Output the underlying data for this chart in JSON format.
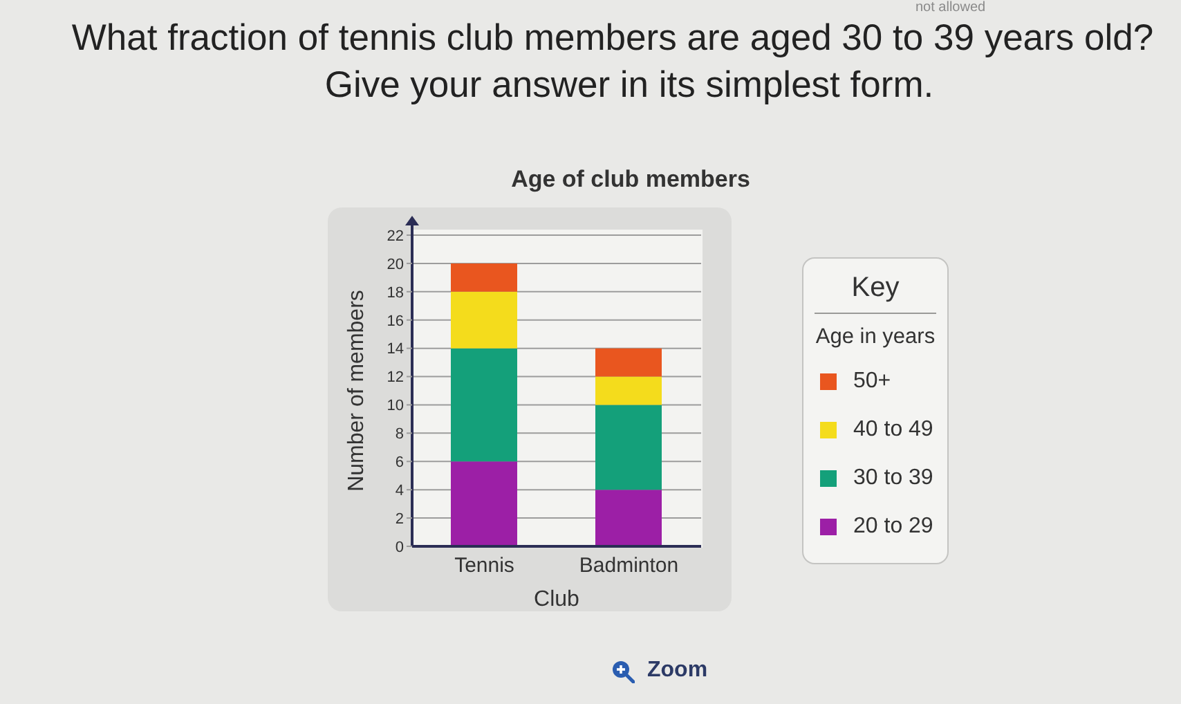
{
  "chart_data": {
    "type": "bar",
    "title": "Age of club members",
    "xlabel": "Club",
    "ylabel": "Number of members",
    "legend_title": "Age in years",
    "annotations": [
      "What fraction of tennis club members are aged 30 to 39 years old?",
      "Give your answer in its simplest form.",
      "Key",
      "Zoom",
      "not allowed"
    ],
    "categories": [
      "Tennis",
      "Badminton"
    ],
    "series": [
      {
        "name": "20 to 29",
        "color": "#9c1fa6",
        "values": [
          6,
          4
        ]
      },
      {
        "name": "30 to 39",
        "color": "#14a07a",
        "values": [
          8,
          6
        ]
      },
      {
        "name": "40 to 49",
        "color": "#f4dc1c",
        "values": [
          4,
          2
        ]
      },
      {
        "name": "50+",
        "color": "#e9561f",
        "values": [
          2,
          2
        ]
      }
    ],
    "stacked": true,
    "ylim": [
      0,
      22
    ],
    "yticks": [
      0,
      2,
      4,
      6,
      8,
      10,
      12,
      14,
      16,
      18,
      20,
      22
    ],
    "grid": "y",
    "legend": "right"
  }
}
